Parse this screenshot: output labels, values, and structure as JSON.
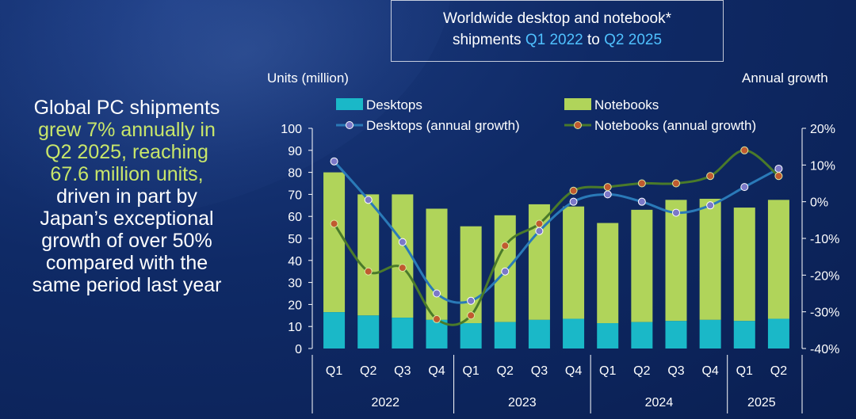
{
  "headline": {
    "line1": "Global PC shipments",
    "line2": "grew 7% annually in",
    "line3": "Q2 2025, reaching",
    "line4": "67.6 million units,",
    "line5": "driven in part by",
    "line6": "Japan’s exceptional",
    "line7": "growth of over 50%",
    "line8": "compared with the",
    "line9": "same period last year"
  },
  "title": {
    "line1": "Worldwide desktop and notebook*",
    "line2_a": "shipments ",
    "line2_b": "Q1 2022",
    "line2_c": " to ",
    "line2_d": "Q2 2025"
  },
  "colors": {
    "desktops": "#1ab8c8",
    "notebooks": "#b0d45a",
    "desktops_line": "#2a7ab8",
    "notebooks_line": "#4a7a2a",
    "marker_desktops": "#7b78c8",
    "marker_notebooks": "#c05a30",
    "highlight": "#4fc1ff"
  },
  "chart_data": {
    "type": "bar",
    "stacked": true,
    "left_axis_label": "Units (million)",
    "right_axis_label": "Annual growth",
    "ylim": [
      0,
      100
    ],
    "yticks": [
      0,
      10,
      20,
      30,
      40,
      50,
      60,
      70,
      80,
      90,
      100
    ],
    "y2lim": [
      -40,
      20
    ],
    "y2ticks": [
      "20%",
      "10%",
      "0%",
      "-10%",
      "-20%",
      "-30%",
      "-40%"
    ],
    "categories": [
      "Q1",
      "Q2",
      "Q3",
      "Q4",
      "Q1",
      "Q2",
      "Q3",
      "Q4",
      "Q1",
      "Q2",
      "Q3",
      "Q4",
      "Q1",
      "Q2"
    ],
    "years": [
      {
        "label": "2022",
        "span": 4
      },
      {
        "label": "2023",
        "span": 4
      },
      {
        "label": "2024",
        "span": 4
      },
      {
        "label": "2025",
        "span": 2
      }
    ],
    "series": [
      {
        "name": "Desktops",
        "kind": "bar",
        "values": [
          16.5,
          15,
          14,
          13,
          11.5,
          12,
          13,
          13.5,
          11.5,
          12,
          12.5,
          13,
          12.5,
          13.5
        ]
      },
      {
        "name": "Notebooks",
        "kind": "bar",
        "values": [
          63.5,
          55,
          56,
          50.5,
          44,
          48.5,
          52.5,
          51,
          45.5,
          51,
          55,
          55,
          51.5,
          54
        ]
      },
      {
        "name": "Desktops (annual growth)",
        "kind": "line",
        "axis": "right",
        "values": [
          11,
          0.5,
          -11,
          -25,
          -27,
          -19,
          -8,
          0,
          2,
          0,
          -3,
          -1,
          4,
          9
        ]
      },
      {
        "name": "Notebooks (annual growth)",
        "kind": "line",
        "axis": "right",
        "values": [
          -6,
          -19,
          -18,
          -32,
          -31,
          -12,
          -6,
          3,
          4,
          5,
          5,
          7,
          14,
          7
        ]
      }
    ]
  }
}
